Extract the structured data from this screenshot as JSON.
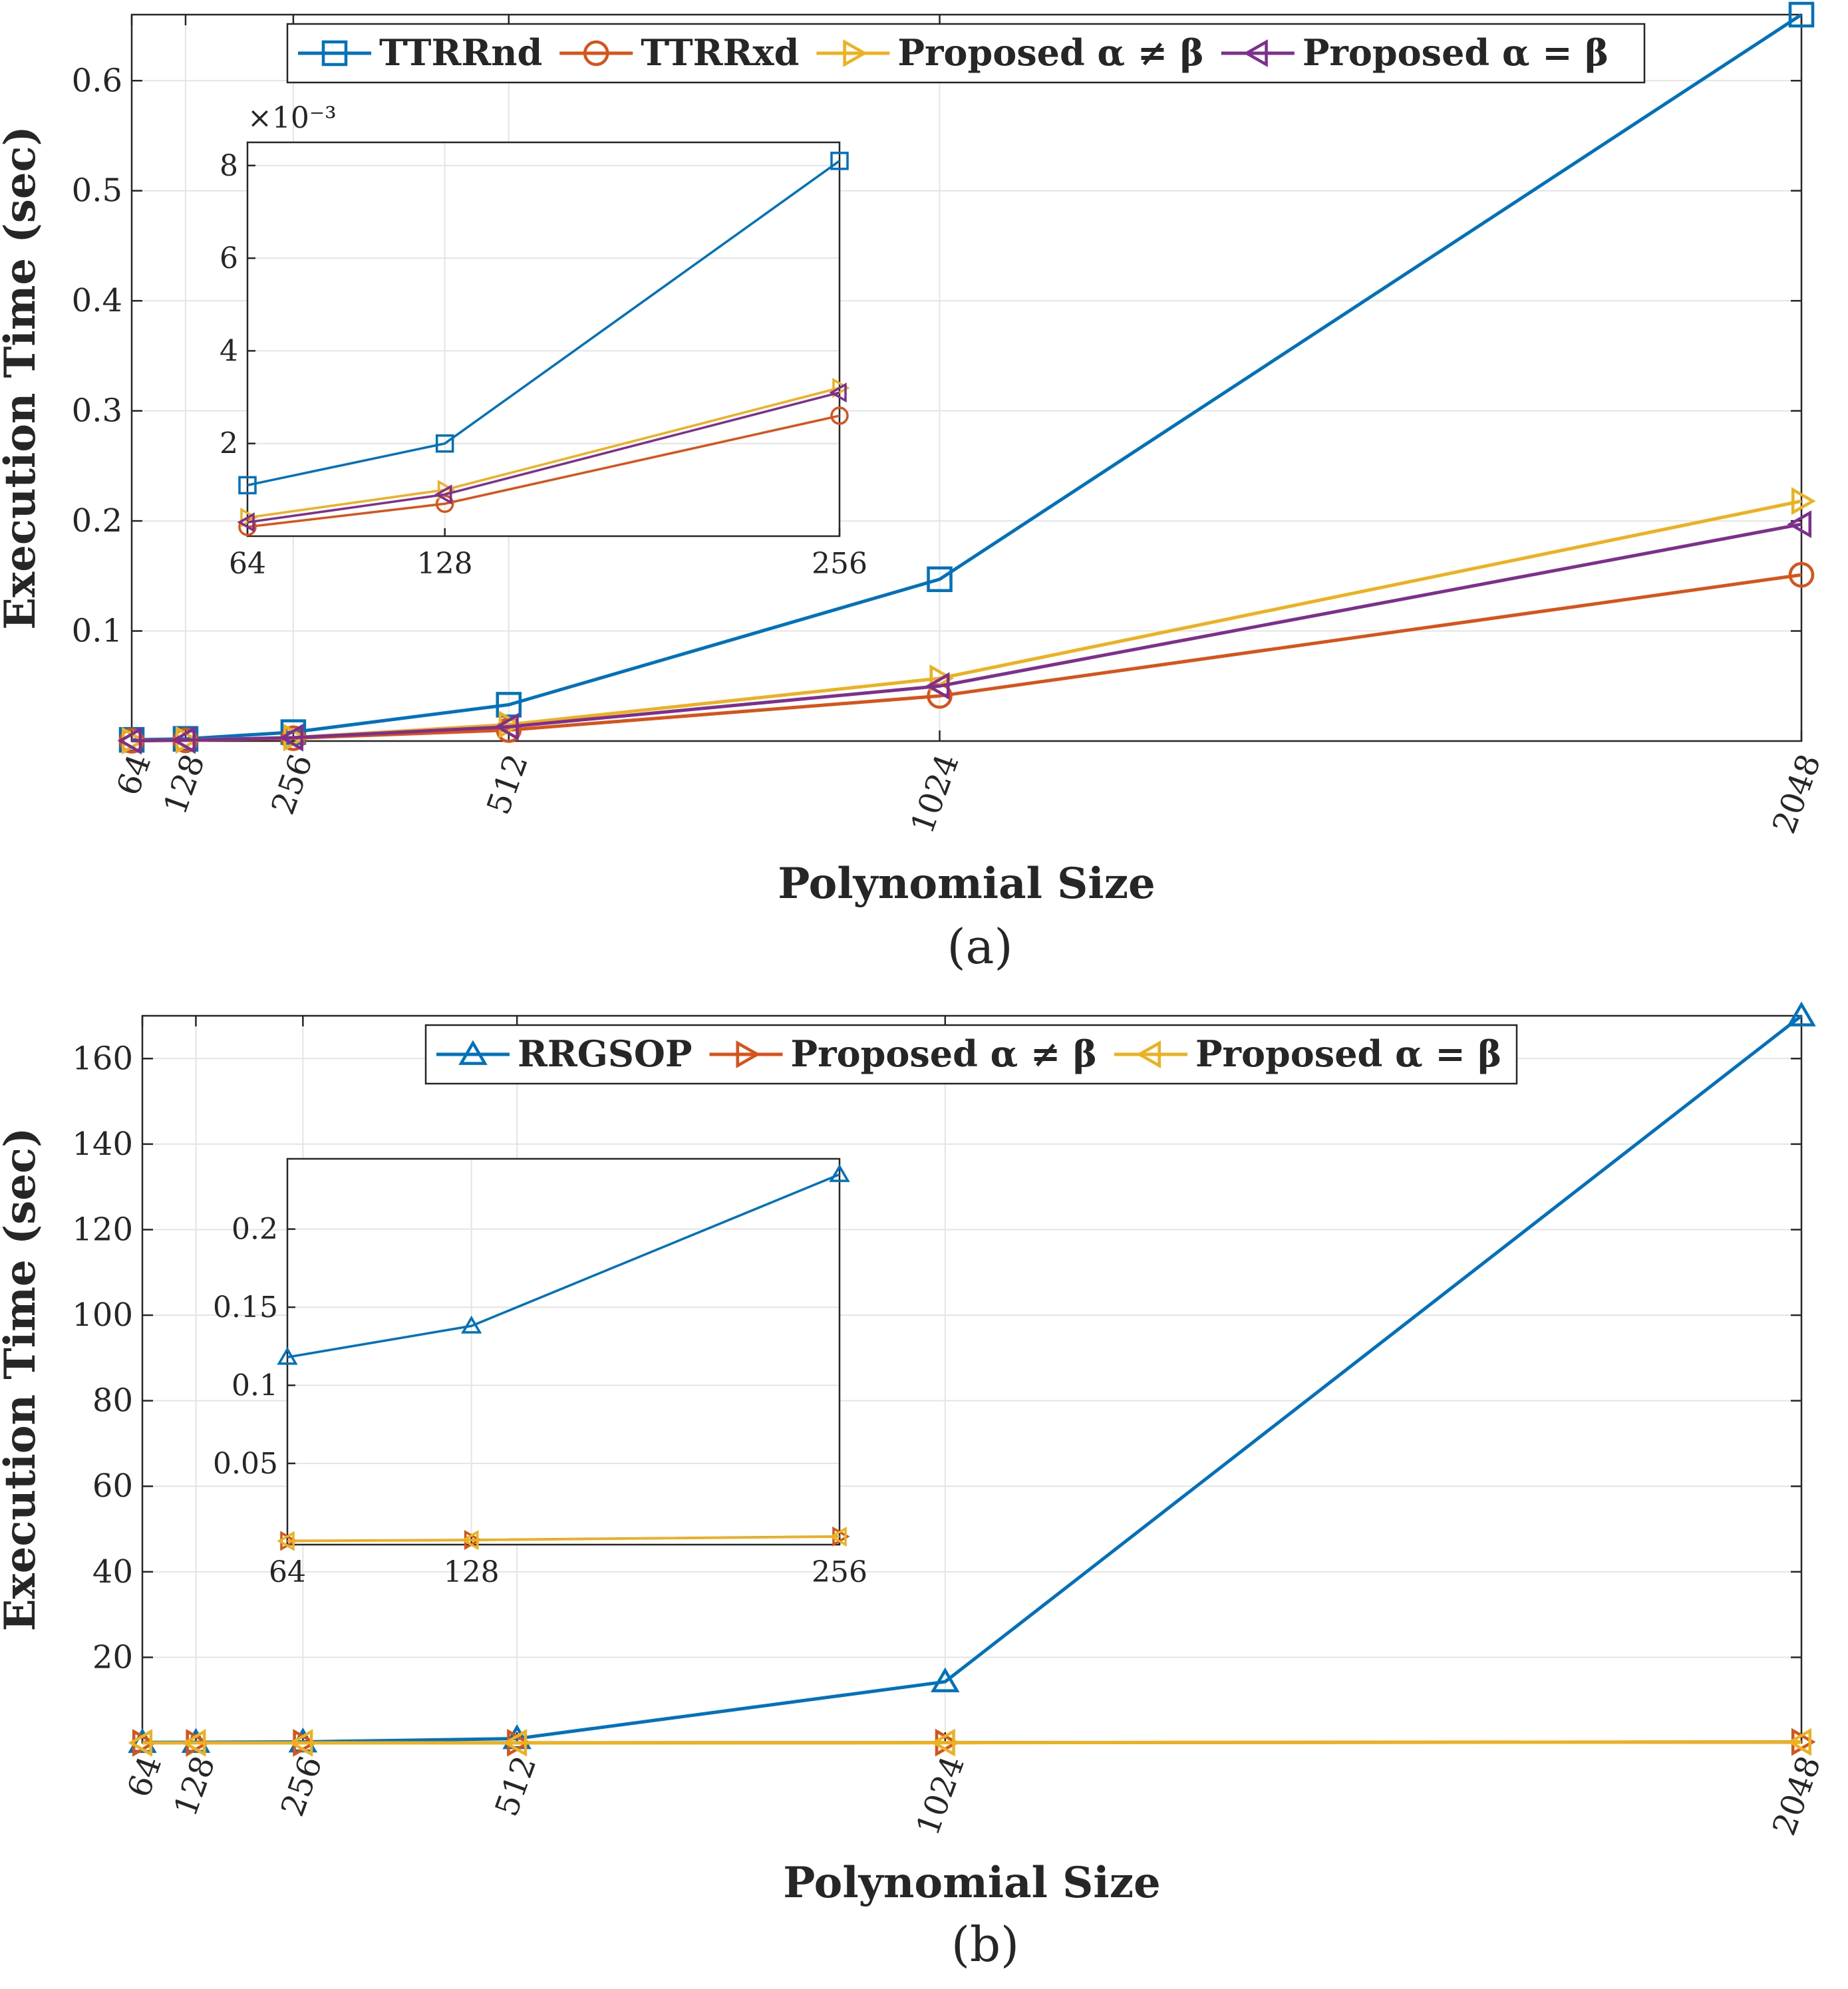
{
  "chart_data": [
    {
      "id": "a",
      "type": "line",
      "caption": "(a)",
      "xlabel": "Polynomial Size",
      "ylabel": "Execution Time (sec)",
      "x": [
        64,
        128,
        256,
        512,
        1024,
        2048
      ],
      "x_tick_labels": [
        "64",
        "128",
        "256",
        "512",
        "1024",
        "2048"
      ],
      "xlim": [
        64,
        2048
      ],
      "ylim": [
        0,
        0.66
      ],
      "y_ticks": [
        0.1,
        0.2,
        0.3,
        0.4,
        0.5,
        0.6
      ],
      "y_tick_labels": [
        "0.1",
        "0.2",
        "0.3",
        "0.4",
        "0.5",
        "0.6"
      ],
      "grid": true,
      "legend_position": "top, horizontal",
      "series": [
        {
          "name": "TTRRnd",
          "color": "#0072BD",
          "marker": "square",
          "values": [
            0.0011,
            0.002,
            0.0081,
            0.033,
            0.147,
            0.66
          ]
        },
        {
          "name": "TTRRxd",
          "color": "#D95319",
          "marker": "circle",
          "values": [
            0.0002,
            0.0007,
            0.0026,
            0.01,
            0.041,
            0.151
          ]
        },
        {
          "name": "Proposed α ≠ β",
          "color": "#EDB120",
          "marker": "triangle-right",
          "values": [
            0.0004,
            0.001,
            0.0032,
            0.015,
            0.057,
            0.218
          ]
        },
        {
          "name": "Proposed α = β",
          "color": "#7E2F8E",
          "marker": "triangle-left",
          "values": [
            0.0003,
            0.0009,
            0.0031,
            0.013,
            0.05,
            0.197
          ]
        }
      ],
      "inset": {
        "x": [
          64,
          128,
          256
        ],
        "x_tick_labels": [
          "64",
          "128",
          "256"
        ],
        "xlim": [
          64,
          256
        ],
        "ylim": [
          0,
          0.0085
        ],
        "y_ticks": [
          2,
          4,
          6,
          8
        ],
        "y_tick_labels": [
          "2",
          "4",
          "6",
          "8"
        ],
        "exponent_label": "×10⁻³",
        "series_values": [
          [
            0.0011,
            0.002,
            0.0081
          ],
          [
            0.0002,
            0.0007,
            0.0026
          ],
          [
            0.0004,
            0.001,
            0.0032
          ],
          [
            0.0003,
            0.0009,
            0.0031
          ]
        ]
      }
    },
    {
      "id": "b",
      "type": "line",
      "caption": "(b)",
      "xlabel": "Polynomial Size",
      "ylabel": "Execution Time (sec)",
      "x": [
        64,
        128,
        256,
        512,
        1024,
        2048
      ],
      "x_tick_labels": [
        "64",
        "128",
        "256",
        "512",
        "1024",
        "2048"
      ],
      "xlim": [
        64,
        2048
      ],
      "ylim": [
        0,
        170
      ],
      "y_ticks": [
        20,
        40,
        60,
        80,
        100,
        120,
        140,
        160
      ],
      "y_tick_labels": [
        "20",
        "40",
        "60",
        "80",
        "100",
        "120",
        "140",
        "160"
      ],
      "grid": true,
      "legend_position": "top, horizontal",
      "series": [
        {
          "name": "RRGSOP",
          "color": "#0072BD",
          "marker": "triangle-up",
          "values": [
            0.118,
            0.138,
            0.235,
            1.0,
            14.3,
            170
          ]
        },
        {
          "name": "Proposed α ≠ β",
          "color": "#D95319",
          "marker": "triangle-right",
          "values": [
            0.0004,
            0.001,
            0.0032,
            0.015,
            0.057,
            0.218
          ]
        },
        {
          "name": "Proposed α = β",
          "color": "#EDB120",
          "marker": "triangle-left",
          "values": [
            0.0003,
            0.0009,
            0.0031,
            0.013,
            0.05,
            0.197
          ]
        }
      ],
      "inset": {
        "x": [
          64,
          128,
          256
        ],
        "x_tick_labels": [
          "64",
          "128",
          "256"
        ],
        "xlim": [
          64,
          256
        ],
        "ylim": [
          -0.002,
          0.245
        ],
        "y_ticks": [
          0.05,
          0.1,
          0.15,
          0.2
        ],
        "y_tick_labels": [
          "0.05",
          "0.1",
          "0.15",
          "0.2"
        ],
        "series_values": [
          [
            0.118,
            0.138,
            0.235
          ],
          [
            0.0004,
            0.001,
            0.0032
          ],
          [
            0.0003,
            0.0009,
            0.0031
          ]
        ]
      }
    }
  ]
}
